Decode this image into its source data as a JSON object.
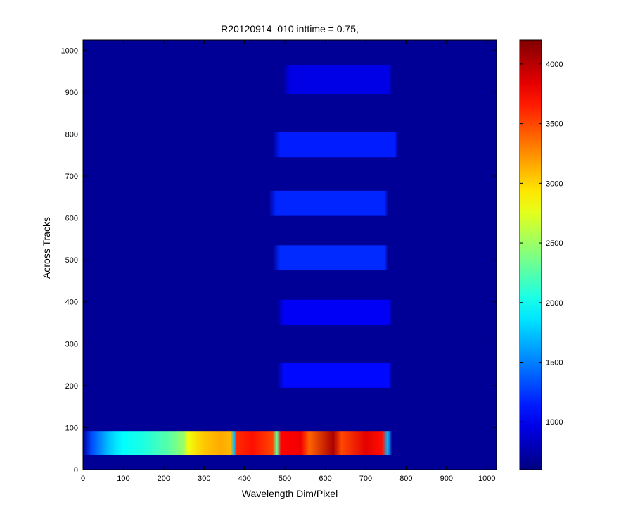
{
  "chart_data": {
    "type": "heatmap",
    "title": "R20120914_010 inttime = 0.75,",
    "xlabel": "Wavelength Dim/Pixel",
    "ylabel": "Across Tracks",
    "xlim": [
      0,
      1024
    ],
    "ylim": [
      0,
      1024
    ],
    "x_ticks": [
      "0",
      "100",
      "200",
      "300",
      "400",
      "500",
      "600",
      "700",
      "800",
      "900",
      "1000"
    ],
    "y_ticks": [
      "0",
      "100",
      "200",
      "300",
      "400",
      "500",
      "600",
      "700",
      "800",
      "900",
      "1000"
    ],
    "colormap": "jet",
    "background_value": 680,
    "clim": [
      600,
      4200
    ],
    "colorbar_ticks": [
      "1000",
      "1500",
      "2000",
      "2500",
      "3000",
      "3500",
      "4000"
    ],
    "spectra": [
      {
        "y_range": [
          35,
          92
        ],
        "profile_x": [
          0,
          20,
          40,
          60,
          80,
          100,
          120,
          150,
          180,
          220,
          250,
          260,
          300,
          340,
          365,
          375,
          380,
          420,
          470,
          480,
          490,
          540,
          560,
          620,
          640,
          700,
          740,
          755,
          765
        ],
        "profile_value": [
          700,
          1300,
          1500,
          1700,
          1850,
          1950,
          2000,
          2050,
          2150,
          2300,
          2500,
          2800,
          3050,
          3150,
          3100,
          1700,
          3600,
          3700,
          3500,
          2300,
          3750,
          3800,
          3400,
          4050,
          3500,
          3850,
          3700,
          1700,
          700
        ]
      },
      {
        "y_range": [
          195,
          255
        ],
        "x_range": [
          480,
          765
        ],
        "value": 1080
      },
      {
        "y_range": [
          345,
          405
        ],
        "x_range": [
          480,
          765
        ],
        "value": 1020
      },
      {
        "y_range": [
          475,
          535
        ],
        "x_range": [
          470,
          755
        ],
        "value": 1200
      },
      {
        "y_range": [
          605,
          665
        ],
        "x_range": [
          460,
          755
        ],
        "value": 1180
      },
      {
        "y_range": [
          745,
          805
        ],
        "x_range": [
          470,
          780
        ],
        "value": 1150
      },
      {
        "y_range": [
          895,
          965
        ],
        "x_range": [
          495,
          765
        ],
        "value": 960
      }
    ]
  }
}
